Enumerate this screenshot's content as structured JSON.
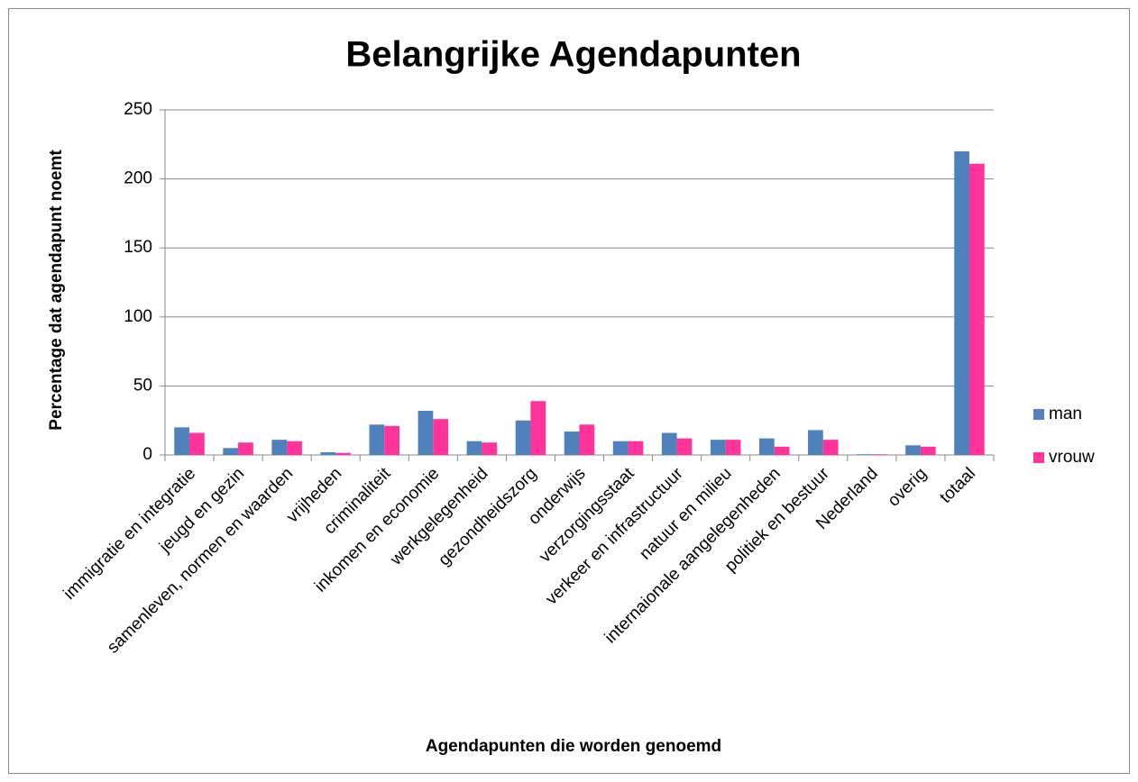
{
  "chart_data": {
    "type": "bar",
    "title": "Belangrijke Agendapunten",
    "x_label": "Agendapunten die worden genoemd",
    "y_label": "Percentage dat agendapunt noemt",
    "categories": [
      "immigratie en integratie",
      "jeugd en gezin",
      "samenleven, normen en waarden",
      "vrijheden",
      "criminaliteit",
      "inkomen en economie",
      "werkgelegenheid",
      "gezondheidszorg",
      "onderwijs",
      "verzorgingsstaat",
      "verkeer en infrastructuur",
      "natuur en milieu",
      "internaionale aangelegenheden",
      "politiek en bestuur",
      "Nederland",
      "overig",
      "totaal"
    ],
    "series": [
      {
        "name": "man",
        "color": "#4f81bd",
        "values": [
          20,
          5,
          11,
          2,
          22,
          32,
          10,
          25,
          17,
          10,
          16,
          11,
          12,
          18,
          0.5,
          7,
          220
        ]
      },
      {
        "name": "vrouw",
        "color": "#ff3399",
        "values": [
          16,
          9,
          10,
          1.5,
          21,
          26,
          9,
          39,
          22,
          10,
          12,
          11,
          6,
          11,
          0.5,
          6,
          211
        ]
      }
    ],
    "ylim": [
      0,
      250
    ],
    "yticks": [
      0,
      50,
      100,
      150,
      200,
      250
    ],
    "grid": true,
    "legend": "right"
  }
}
